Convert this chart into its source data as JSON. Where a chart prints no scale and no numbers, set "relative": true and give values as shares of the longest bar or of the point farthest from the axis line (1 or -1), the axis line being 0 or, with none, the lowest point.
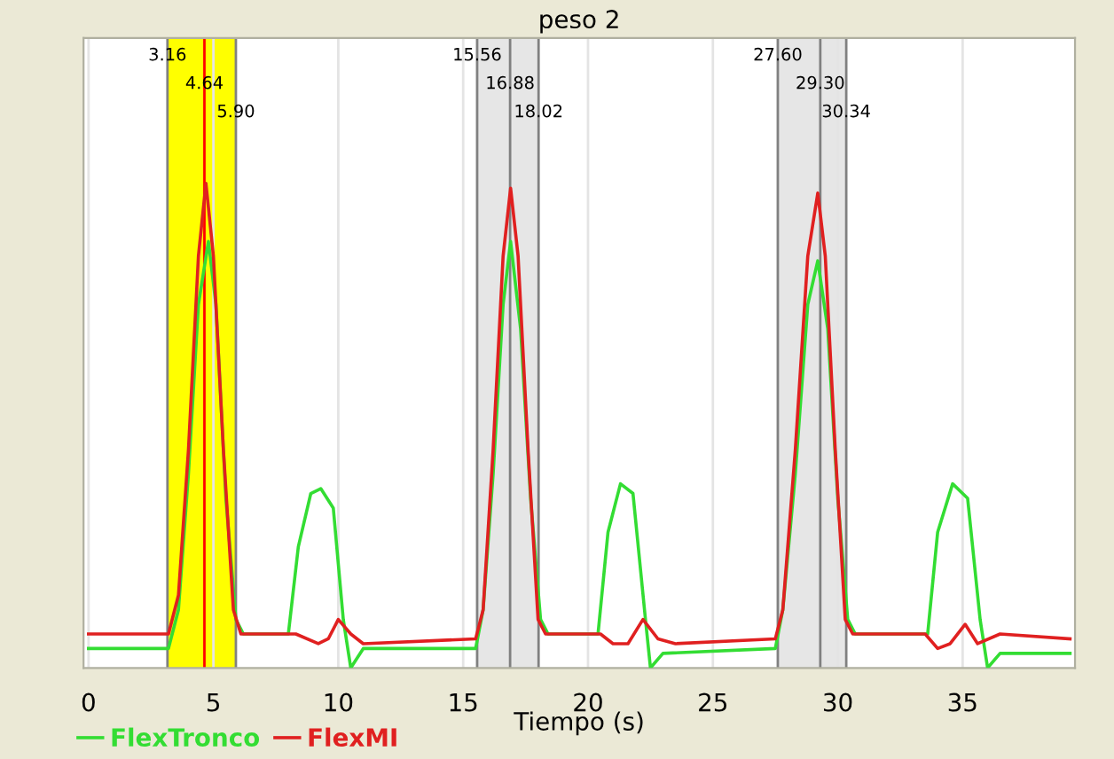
{
  "chart_data": {
    "type": "line",
    "title": "peso 2",
    "xlabel": "Tiempo (s)",
    "relative": true,
    "xlim": [
      -0.2,
      39.5
    ],
    "xticks": [
      0,
      5,
      10,
      15,
      20,
      25,
      30,
      35
    ],
    "grid": "x",
    "legend": "bottom left",
    "marker": "none",
    "line_style": "solid",
    "series": [
      {
        "name": "FlexTronco",
        "color": "#33dd33",
        "x": [
          0,
          3.2,
          3.6,
          4.0,
          4.4,
          4.8,
          5.1,
          5.5,
          5.9,
          6.2,
          8.0,
          8.4,
          8.9,
          9.3,
          9.8,
          10.2,
          10.5,
          11.0,
          15.5,
          15.8,
          16.2,
          16.6,
          16.9,
          17.3,
          17.7,
          18.1,
          18.4,
          20.4,
          20.8,
          21.3,
          21.8,
          22.3,
          22.5,
          23.0,
          27.5,
          27.8,
          28.3,
          28.8,
          29.2,
          29.6,
          30.0,
          30.4,
          30.7,
          33.6,
          34.0,
          34.6,
          35.2,
          35.7,
          36.0,
          36.5,
          39.3
        ],
        "values": [
          0.04,
          0.04,
          0.12,
          0.4,
          0.75,
          0.88,
          0.75,
          0.35,
          0.1,
          0.07,
          0.07,
          0.25,
          0.36,
          0.37,
          0.33,
          0.1,
          0.0,
          0.04,
          0.04,
          0.12,
          0.4,
          0.75,
          0.88,
          0.7,
          0.35,
          0.1,
          0.07,
          0.07,
          0.28,
          0.38,
          0.36,
          0.1,
          0.0,
          0.03,
          0.04,
          0.12,
          0.4,
          0.75,
          0.84,
          0.7,
          0.35,
          0.1,
          0.07,
          0.07,
          0.28,
          0.38,
          0.35,
          0.1,
          0.0,
          0.03,
          0.03
        ]
      },
      {
        "name": "FlexMI",
        "color": "#e02020",
        "x": [
          0,
          3.2,
          3.6,
          4.0,
          4.4,
          4.7,
          5.0,
          5.4,
          5.8,
          6.1,
          8.3,
          9.2,
          9.6,
          10.0,
          10.5,
          11.0,
          15.5,
          15.8,
          16.2,
          16.6,
          16.9,
          17.2,
          17.6,
          18.0,
          18.3,
          20.5,
          21.0,
          21.6,
          22.2,
          22.8,
          23.5,
          27.5,
          27.8,
          28.3,
          28.8,
          29.2,
          29.5,
          29.9,
          30.3,
          30.6,
          33.5,
          34.0,
          34.5,
          35.1,
          35.6,
          36.5,
          39.3
        ],
        "values": [
          0.07,
          0.07,
          0.15,
          0.45,
          0.85,
          1.0,
          0.85,
          0.45,
          0.12,
          0.07,
          0.07,
          0.05,
          0.06,
          0.1,
          0.07,
          0.05,
          0.06,
          0.12,
          0.45,
          0.85,
          0.99,
          0.85,
          0.45,
          0.1,
          0.07,
          0.07,
          0.05,
          0.05,
          0.1,
          0.06,
          0.05,
          0.06,
          0.12,
          0.45,
          0.85,
          0.98,
          0.85,
          0.45,
          0.1,
          0.07,
          0.07,
          0.04,
          0.05,
          0.09,
          0.05,
          0.07,
          0.06
        ]
      }
    ],
    "bands": [
      {
        "axis": "x",
        "from": 3.16,
        "to": 5.9,
        "color": "#ffff00"
      },
      {
        "axis": "x",
        "from": 15.56,
        "to": 18.02,
        "color": "#e6e6e6"
      },
      {
        "axis": "x",
        "from": 27.6,
        "to": 30.34,
        "color": "#e6e6e6"
      }
    ],
    "ref_lines": [
      {
        "axis": "x",
        "value": 3.16,
        "label": "3.16",
        "color": "#808080"
      },
      {
        "axis": "x",
        "value": 4.64,
        "label": "4.64",
        "color": "#ff0000"
      },
      {
        "axis": "x",
        "value": 5.9,
        "label": "5.90",
        "color": "#808080"
      },
      {
        "axis": "x",
        "value": 15.56,
        "label": "15.56",
        "color": "#808080"
      },
      {
        "axis": "x",
        "value": 16.88,
        "label": "16.88",
        "color": "#808080"
      },
      {
        "axis": "x",
        "value": 18.02,
        "label": "18.02",
        "color": "#808080"
      },
      {
        "axis": "x",
        "value": 27.6,
        "label": "27.60",
        "color": "#808080"
      },
      {
        "axis": "x",
        "value": 29.3,
        "label": "29.30",
        "color": "#808080"
      },
      {
        "axis": "x",
        "value": 30.34,
        "label": "30.34",
        "color": "#808080"
      }
    ]
  }
}
